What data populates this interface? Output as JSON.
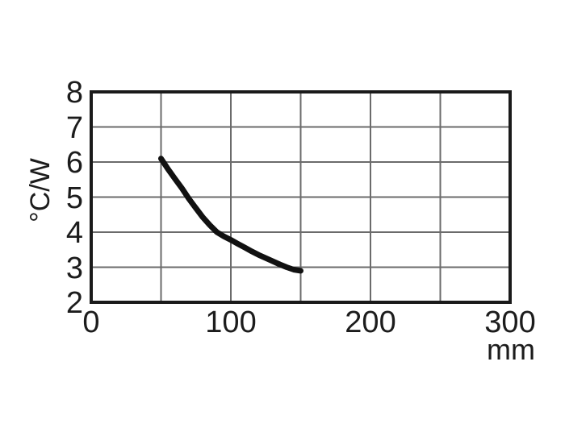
{
  "chart_data": {
    "type": "line",
    "title": "",
    "xlabel": "mm",
    "ylabel": "°C/W",
    "xlim": [
      0,
      300
    ],
    "ylim": [
      2,
      8
    ],
    "x_grid_step": 50,
    "y_grid_step": 1,
    "x_tick_values": [
      0,
      100,
      200,
      300
    ],
    "x_tick_labels": [
      "0",
      "100",
      "200",
      "300"
    ],
    "y_tick_values": [
      2,
      3,
      4,
      5,
      6,
      7,
      8
    ],
    "y_tick_labels": [
      "2",
      "3",
      "4",
      "5",
      "6",
      "7",
      "8"
    ],
    "grid": true,
    "legend_position": "none",
    "colors": {
      "background": "#ffffff",
      "frame": "#1a1a1a",
      "grid": "#6b6b6b",
      "curve": "#111111",
      "text": "#1c1c1c"
    },
    "series": [
      {
        "name": "thermal-resistance-vs-length",
        "stroke_width": 7,
        "x": [
          50,
          55,
          60,
          65,
          70,
          75,
          80,
          85,
          90,
          95,
          100,
          105,
          110,
          115,
          120,
          125,
          130,
          135,
          140,
          145,
          150
        ],
        "y": [
          6.1,
          5.8,
          5.52,
          5.25,
          4.95,
          4.68,
          4.42,
          4.2,
          4.0,
          3.88,
          3.78,
          3.67,
          3.56,
          3.45,
          3.35,
          3.26,
          3.17,
          3.08,
          3.0,
          2.93,
          2.9
        ]
      }
    ]
  }
}
